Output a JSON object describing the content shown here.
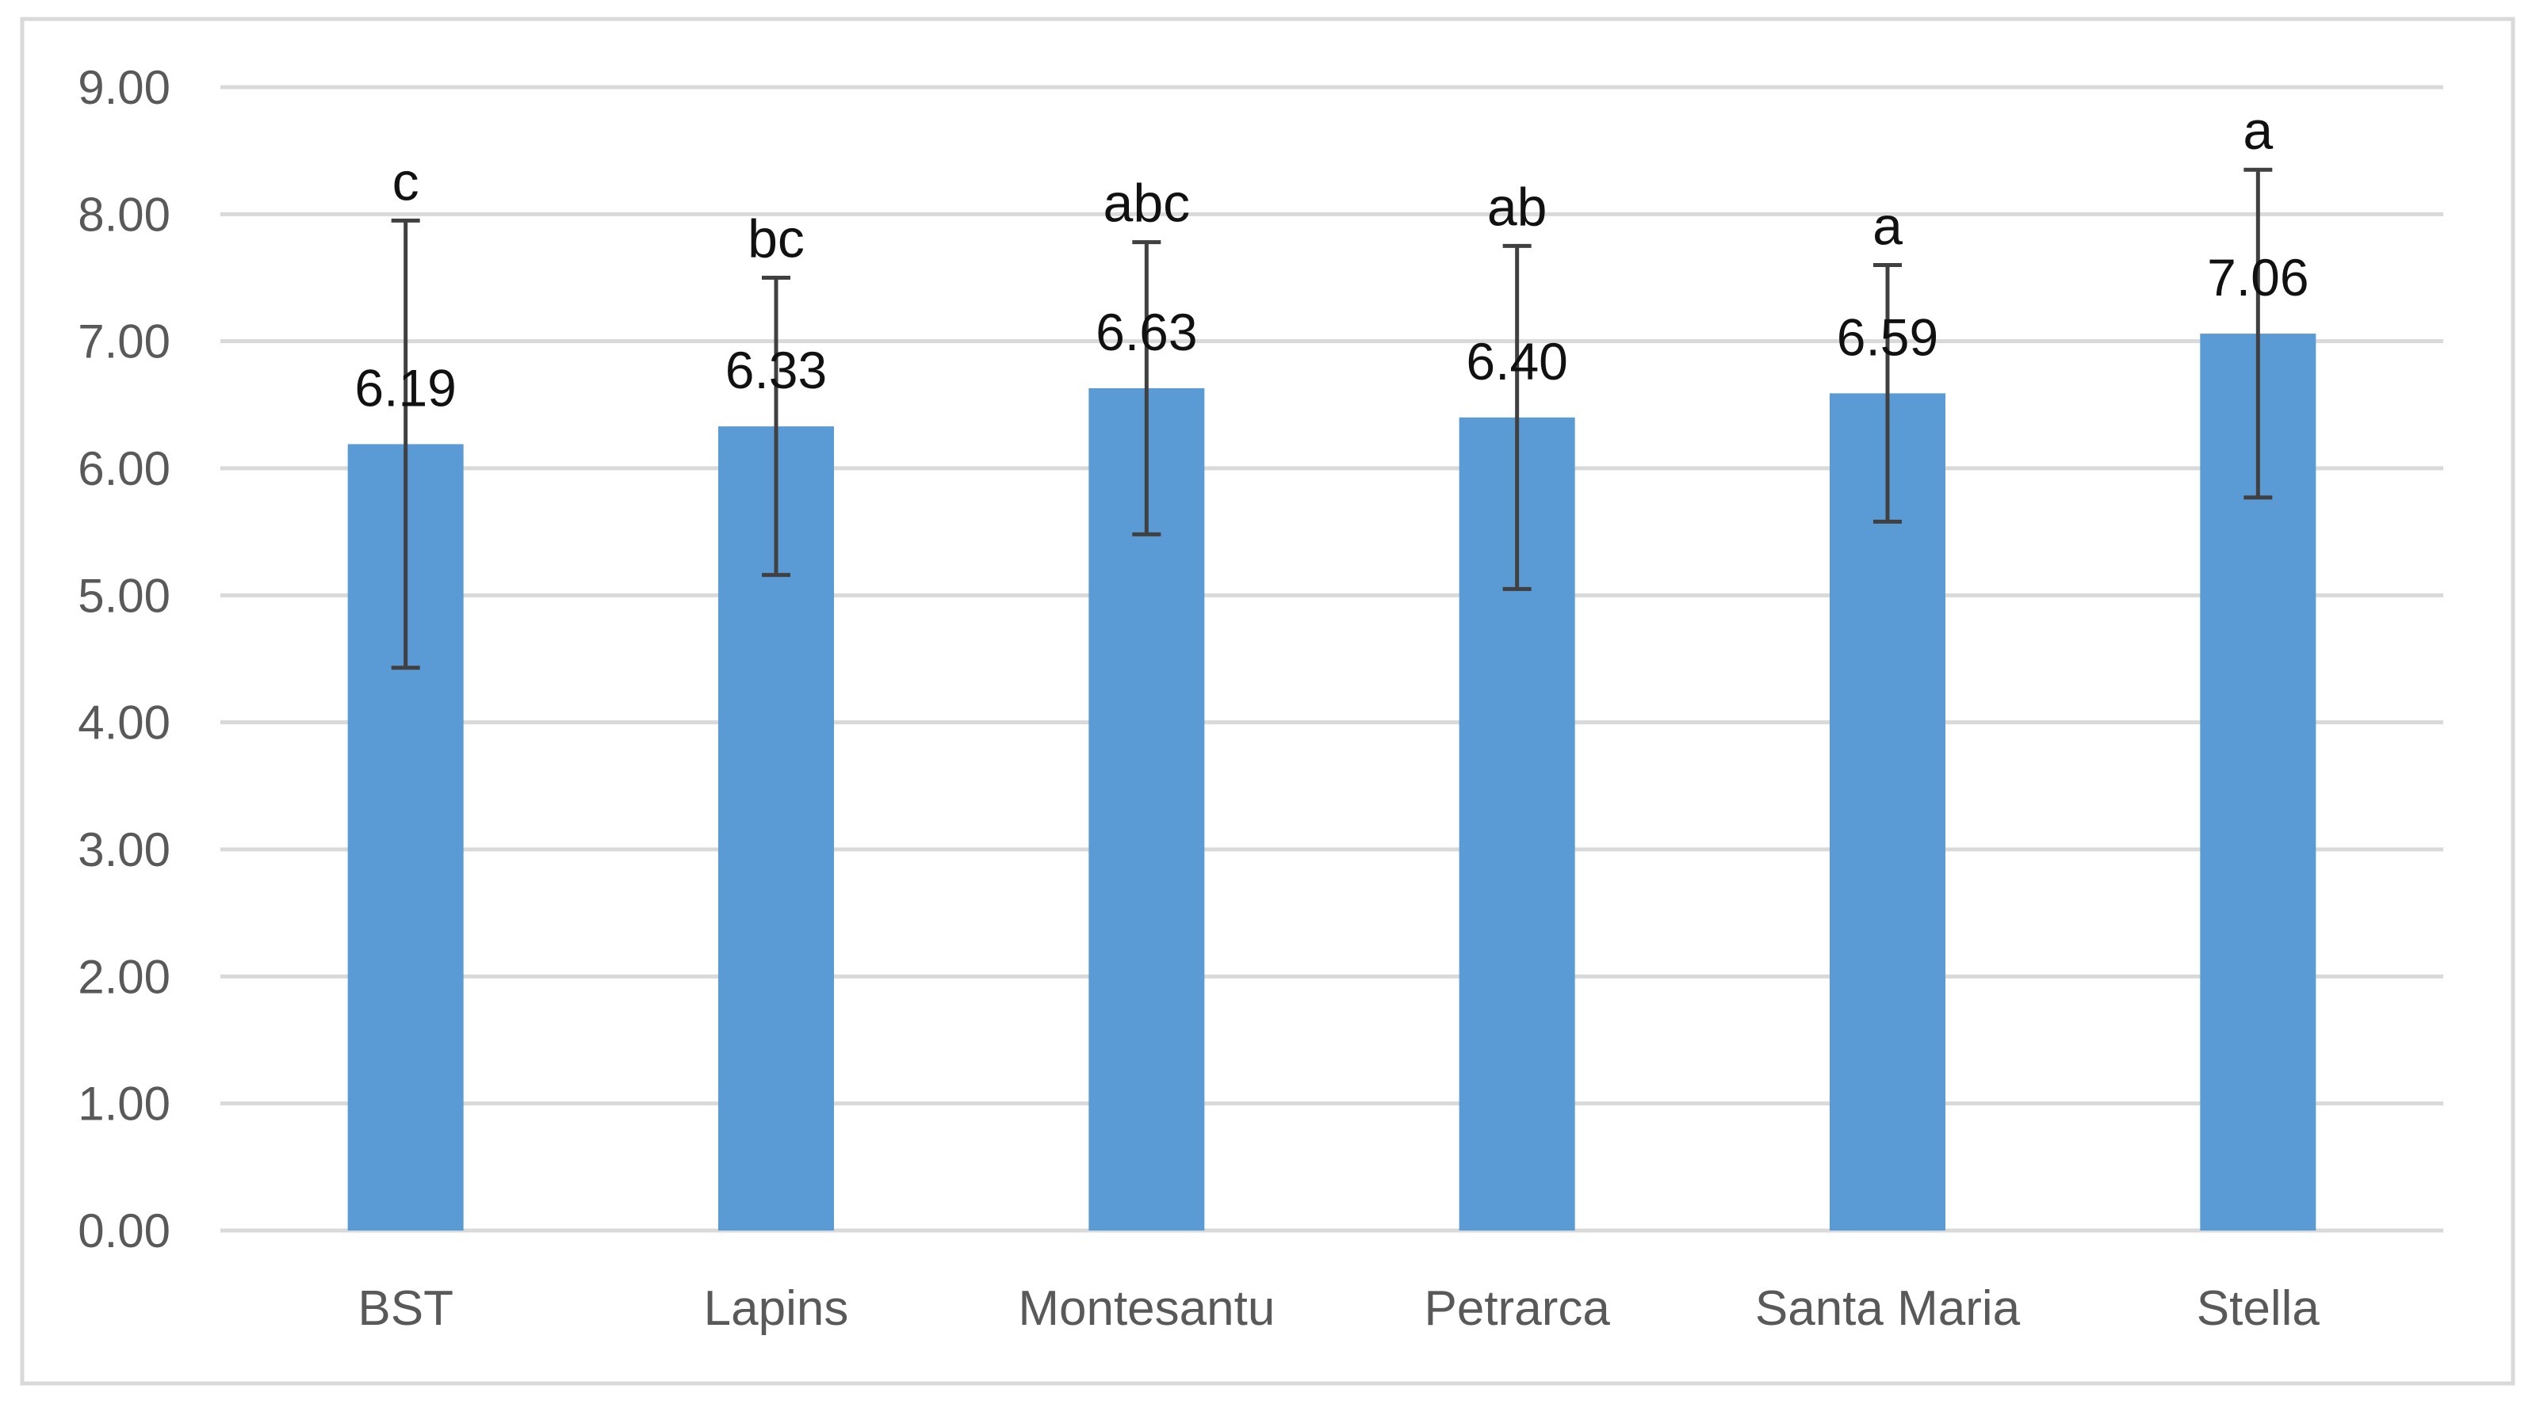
{
  "chart_data": {
    "type": "bar",
    "categories": [
      "BST",
      "Lapins",
      "Montesantu",
      "Petrarca",
      "Santa Maria",
      "Stella"
    ],
    "values": [
      6.19,
      6.33,
      6.63,
      6.4,
      6.59,
      7.06
    ],
    "value_labels": [
      "6.19",
      "6.33",
      "6.63",
      "6.40",
      "6.59",
      "7.06"
    ],
    "error_upper": [
      7.95,
      7.5,
      7.78,
      7.75,
      7.6,
      8.35
    ],
    "error_lower": [
      4.43,
      5.16,
      5.48,
      5.05,
      5.58,
      5.77
    ],
    "significance_letters": [
      "c",
      "bc",
      "abc",
      "ab",
      "a",
      "a"
    ],
    "y_ticks": [
      "0.00",
      "1.00",
      "2.00",
      "3.00",
      "4.00",
      "5.00",
      "6.00",
      "7.00",
      "8.00",
      "9.00"
    ],
    "ylim": [
      0,
      9
    ],
    "grid": true,
    "legend": "none",
    "title": "",
    "xlabel": "",
    "ylabel": "",
    "colors": {
      "bar": "#5b9bd5",
      "error_bar": "#404040",
      "grid": "#d9d9d9",
      "frame": "#d9d9d9"
    }
  }
}
